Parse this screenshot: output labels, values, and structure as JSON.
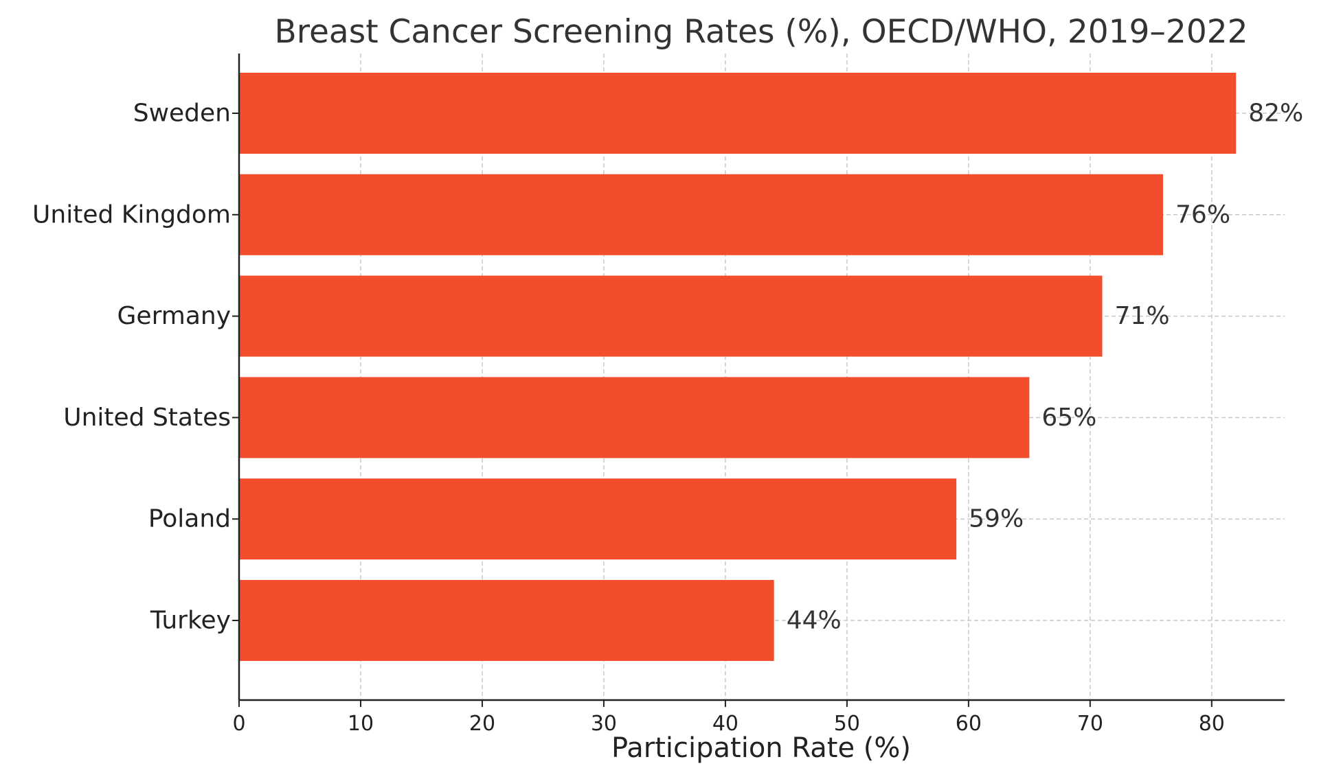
{
  "chart_data": {
    "type": "bar",
    "orientation": "horizontal",
    "title": "Breast Cancer Screening Rates (%), OECD/WHO, 2019–2022",
    "xlabel": "Participation Rate (%)",
    "ylabel": "",
    "categories": [
      "Sweden",
      "United Kingdom",
      "Germany",
      "United States",
      "Poland",
      "Turkey"
    ],
    "values": [
      82,
      76,
      71,
      65,
      59,
      44
    ],
    "data_labels": [
      "82%",
      "76%",
      "71%",
      "65%",
      "59%",
      "44%"
    ],
    "xlim": [
      0,
      86
    ],
    "xticks": [
      0,
      10,
      20,
      30,
      40,
      50,
      60,
      70,
      80
    ],
    "grid": true,
    "bar_color": "#f24e2e"
  }
}
